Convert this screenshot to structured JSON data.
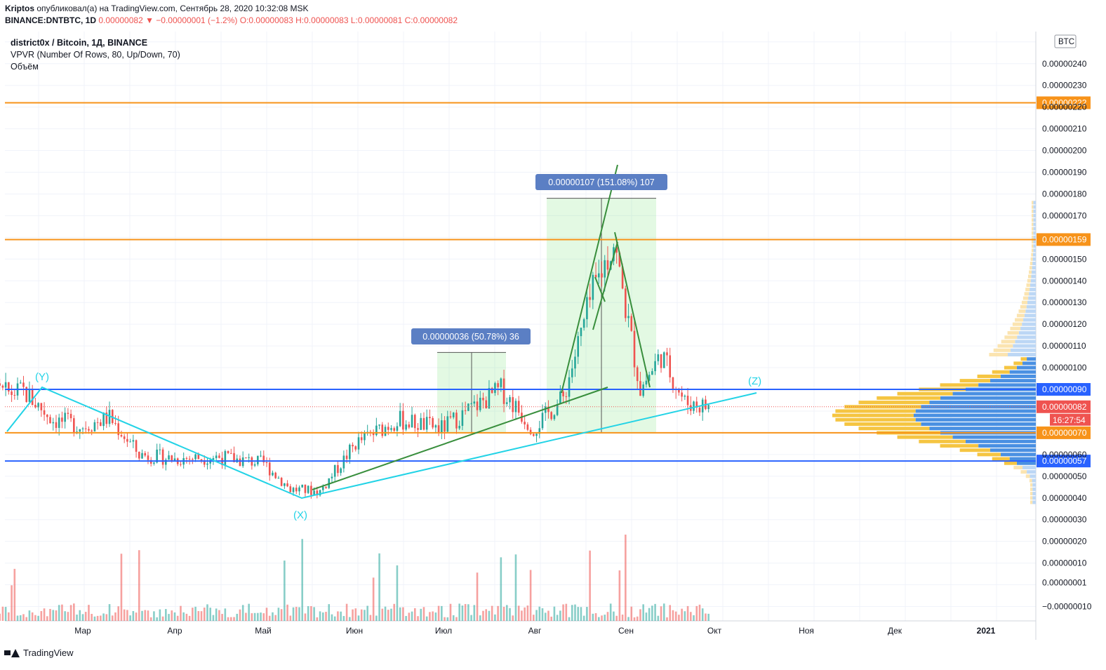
{
  "header": {
    "user": "Kriptos",
    "published_text": "опубликовал(а) на TradingView.com, Сентябрь 28, 2020 10:32:08 MSK",
    "symbol_line": "BINANCE:DNTBTC, 1D",
    "price_change": "0.00000082 ▼ −0.00000001 (−1.2%)",
    "ohlc": "O:0.00000083 H:0.00000083 L:0.00000081 C:0.00000082"
  },
  "legend": {
    "title": "district0x / Bitcoin, 1Д, BINANCE",
    "indicator1": "VPVR (Number Of Rows, 80, Up/Down, 70)",
    "indicator2": "Объём"
  },
  "footer": {
    "brand": "TradingView"
  },
  "chart_data": {
    "type": "candlestick",
    "currency_label": "BTC",
    "x_tick_labels": [
      "Мар",
      "Апр",
      "Май",
      "Июн",
      "Июл",
      "Авг",
      "Сен",
      "Окт",
      "Ноя",
      "Дек",
      "2021"
    ],
    "y_tick_labels": [
      "0.00000240",
      "0.00000230",
      "0.00000220",
      "0.00000210",
      "0.00000200",
      "0.00000190",
      "0.00000180",
      "0.00000170",
      "0.00000150",
      "0.00000140",
      "0.00000130",
      "0.00000120",
      "0.00000110",
      "0.00000100",
      "0.00000060",
      "0.00000050",
      "0.00000040",
      "0.00000030",
      "0.00000020",
      "0.00000010",
      "0.00000001",
      "−0.00000010"
    ],
    "ylim": [
      -1e-07,
      2.5e-06
    ],
    "horizontal_levels": [
      {
        "value": "0.00000222",
        "color": "#f7931a"
      },
      {
        "value": "0.00000159",
        "color": "#f7931a"
      },
      {
        "value": "0.00000090",
        "color": "#2962ff"
      },
      {
        "value": "0.00000070",
        "color": "#f7931a"
      },
      {
        "value": "0.00000057",
        "color": "#2962ff"
      }
    ],
    "last_price": {
      "value": "0.00000082",
      "countdown": "16:27:54"
    },
    "measure_labels": [
      "0.00000036 (50.78%) 36",
      "0.00000107 (151.08%) 107"
    ],
    "wave_labels": [
      "(Y)",
      "(X)",
      "(Z)"
    ],
    "colors": {
      "up": "#26a69a",
      "down": "#ef5350",
      "level_orange": "#f7931a",
      "level_blue": "#2962ff",
      "wave_line": "#22d3e6",
      "trend_green": "#388e3c"
    },
    "price_path": [
      [
        "2020-01-20",
        7e-07
      ],
      [
        "2020-02-01",
        8.8e-07
      ],
      [
        "2020-02-10",
        8.9e-07
      ],
      [
        "2020-02-20",
        7.6e-07
      ],
      [
        "2020-03-01",
        7.3e-07
      ],
      [
        "2020-03-10",
        7.7e-07
      ],
      [
        "2020-03-20",
        6e-07
      ],
      [
        "2020-04-01",
        5.8e-07
      ],
      [
        "2020-04-15",
        5.9e-07
      ],
      [
        "2020-05-01",
        5.6e-07
      ],
      [
        "2020-05-10",
        4.4e-07
      ],
      [
        "2020-05-20",
        4.3e-07
      ],
      [
        "2020-06-01",
        6.5e-07
      ],
      [
        "2020-06-15",
        7.6e-07
      ],
      [
        "2020-06-30",
        7.2e-07
      ],
      [
        "2020-07-10",
        8.1e-07
      ],
      [
        "2020-07-20",
        9e-07
      ],
      [
        "2020-07-31",
        7.2e-07
      ],
      [
        "2020-08-10",
        8.6e-07
      ],
      [
        "2020-08-20",
        1.35e-06
      ],
      [
        "2020-08-27",
        1.58e-06
      ],
      [
        "2020-09-05",
        9e-07
      ],
      [
        "2020-09-12",
        1.06e-06
      ],
      [
        "2020-09-20",
        8.4e-07
      ],
      [
        "2020-09-28",
        8.2e-07
      ]
    ]
  }
}
